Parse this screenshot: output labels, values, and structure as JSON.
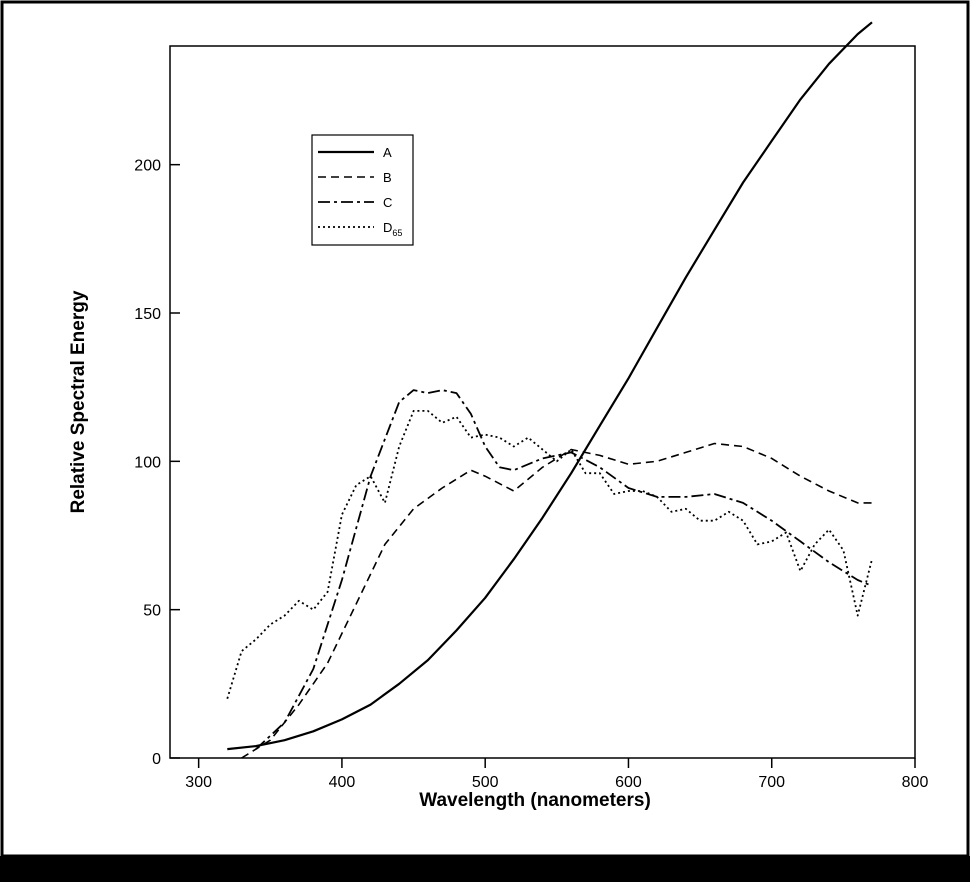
{
  "chart_data": {
    "type": "line",
    "title": "",
    "xlabel": "Wavelength (nanometers)",
    "ylabel": "Relative Spectral Energy",
    "xlim": [
      280,
      800
    ],
    "ylim": [
      0,
      240
    ],
    "xticks": [
      300,
      400,
      500,
      600,
      700,
      800
    ],
    "yticks": [
      0,
      50,
      100,
      150,
      200
    ],
    "grid": false,
    "legend": {
      "position": "top-left",
      "entries": [
        "A",
        "B",
        "C",
        "D65"
      ]
    },
    "series": [
      {
        "name": "A",
        "style": "solid",
        "x": [
          320,
          340,
          360,
          380,
          400,
          420,
          440,
          460,
          480,
          500,
          520,
          540,
          560,
          580,
          600,
          620,
          640,
          660,
          680,
          700,
          720,
          740,
          760,
          770
        ],
        "y": [
          3,
          4,
          6,
          9,
          13,
          18,
          25,
          33,
          43,
          54,
          67,
          81,
          96,
          112,
          128,
          145,
          162,
          178,
          194,
          208,
          222,
          234,
          244,
          248
        ]
      },
      {
        "name": "B",
        "style": "dashed",
        "x": [
          330,
          350,
          370,
          390,
          410,
          430,
          450,
          470,
          490,
          500,
          520,
          540,
          560,
          580,
          600,
          620,
          640,
          660,
          680,
          700,
          720,
          740,
          760,
          770
        ],
        "y": [
          0,
          6,
          18,
          32,
          52,
          72,
          84,
          91,
          97,
          95,
          90,
          98,
          104,
          102,
          99,
          100,
          103,
          106,
          105,
          101,
          95,
          90,
          86,
          86
        ]
      },
      {
        "name": "C",
        "style": "dash-dot",
        "x": [
          340,
          360,
          380,
          400,
          420,
          440,
          450,
          460,
          470,
          480,
          490,
          500,
          510,
          520,
          540,
          560,
          580,
          600,
          620,
          640,
          660,
          680,
          700,
          720,
          740,
          760,
          770
        ],
        "y": [
          3,
          12,
          30,
          60,
          95,
          120,
          124,
          123,
          124,
          123,
          116,
          105,
          98,
          97,
          101,
          103,
          98,
          91,
          88,
          88,
          89,
          86,
          80,
          73,
          66,
          60,
          58
        ]
      },
      {
        "name": "D65",
        "style": "dotted",
        "x": [
          320,
          330,
          340,
          350,
          360,
          370,
          380,
          390,
          400,
          410,
          420,
          430,
          440,
          450,
          460,
          470,
          480,
          490,
          500,
          510,
          520,
          530,
          540,
          550,
          560,
          570,
          580,
          590,
          600,
          610,
          620,
          630,
          640,
          650,
          660,
          670,
          680,
          690,
          700,
          710,
          720,
          730,
          740,
          750,
          760,
          770
        ],
        "y": [
          20,
          36,
          40,
          45,
          48,
          53,
          50,
          56,
          82,
          92,
          95,
          86,
          105,
          117,
          117,
          113,
          115,
          108,
          109,
          108,
          105,
          108,
          104,
          100,
          104,
          96,
          96,
          89,
          90,
          90,
          88,
          83,
          84,
          80,
          80,
          83,
          80,
          72,
          73,
          76,
          63,
          72,
          77,
          70,
          48,
          67
        ]
      }
    ]
  }
}
